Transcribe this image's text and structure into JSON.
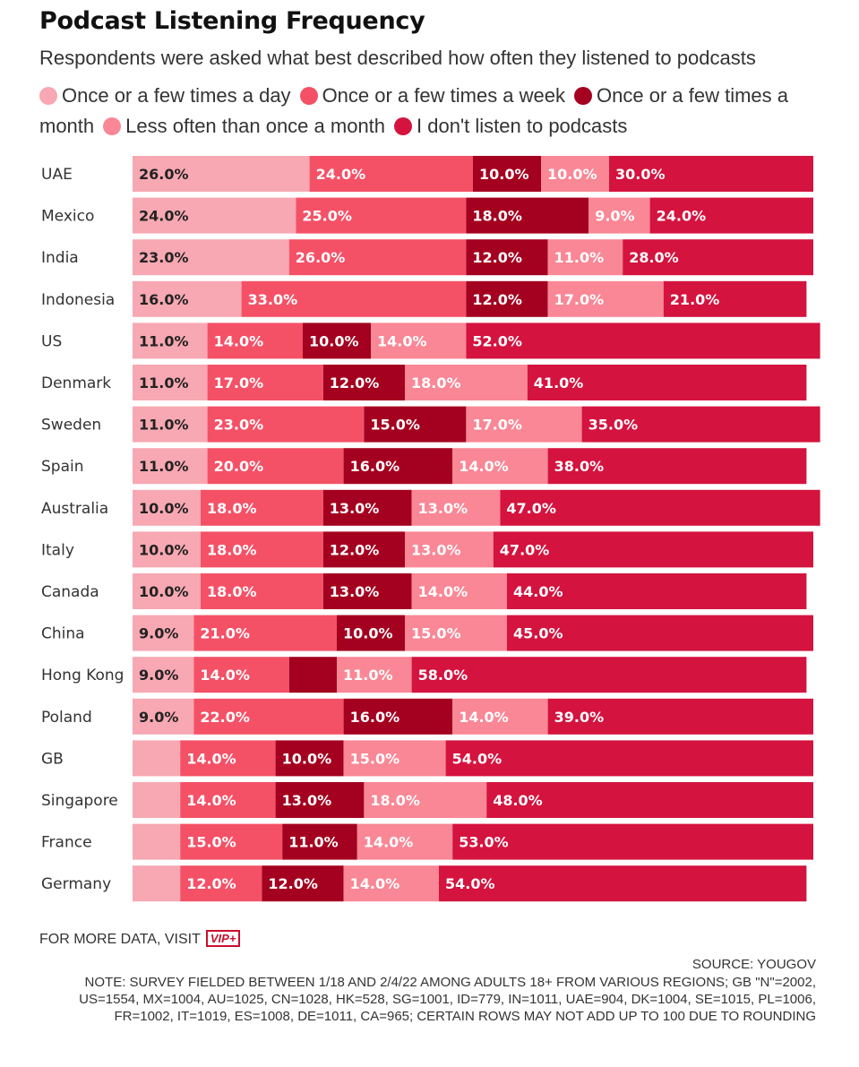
{
  "title": "Podcast Listening Frequency",
  "subtitle": "Respondents were asked what best described how often they listened to podcasts",
  "legend": [
    {
      "label": "Once or a few times a day",
      "color": "#f7a8b2"
    },
    {
      "label": "Once or a few times a week",
      "color": "#f45167"
    },
    {
      "label": "Once or a few times a month",
      "color": "#a4001f"
    },
    {
      "label": "Less often than once a month",
      "color": "#f98795"
    },
    {
      "label": "I don't listen to podcasts",
      "color": "#d4133f"
    }
  ],
  "chart_data": {
    "type": "bar",
    "orientation": "horizontal",
    "stacked": true,
    "categories": [
      "UAE",
      "Mexico",
      "India",
      "Indonesia",
      "US",
      "Denmark",
      "Sweden",
      "Spain",
      "Australia",
      "Italy",
      "Canada",
      "China",
      "Hong Kong",
      "Poland",
      "GB",
      "Singapore",
      "France",
      "Germany"
    ],
    "series": [
      {
        "name": "Once or a few times a day",
        "color": "#f7a8b2",
        "values": [
          26,
          24,
          23,
          16,
          11,
          11,
          11,
          11,
          10,
          10,
          10,
          9,
          9,
          9,
          7,
          7,
          7,
          7
        ],
        "labels": [
          "26.0%",
          "24.0%",
          "23.0%",
          "16.0%",
          "11.0%",
          "11.0%",
          "11.0%",
          "11.0%",
          "10.0%",
          "10.0%",
          "10.0%",
          "9.0%",
          "9.0%",
          "9.0%",
          "",
          "",
          "",
          ""
        ]
      },
      {
        "name": "Once or a few times a week",
        "color": "#f45167",
        "values": [
          24,
          25,
          26,
          33,
          14,
          17,
          23,
          20,
          18,
          18,
          18,
          21,
          14,
          22,
          14,
          14,
          15,
          12
        ],
        "labels": [
          "24.0%",
          "25.0%",
          "26.0%",
          "33.0%",
          "14.0%",
          "17.0%",
          "23.0%",
          "20.0%",
          "18.0%",
          "18.0%",
          "18.0%",
          "21.0%",
          "14.0%",
          "22.0%",
          "14.0%",
          "14.0%",
          "15.0%",
          "12.0%"
        ]
      },
      {
        "name": "Once or a few times a month",
        "color": "#a4001f",
        "values": [
          10,
          18,
          12,
          12,
          10,
          12,
          15,
          16,
          13,
          12,
          13,
          10,
          7,
          16,
          10,
          13,
          11,
          12
        ],
        "labels": [
          "10.0%",
          "18.0%",
          "12.0%",
          "12.0%",
          "10.0%",
          "12.0%",
          "15.0%",
          "16.0%",
          "13.0%",
          "12.0%",
          "13.0%",
          "10.0%",
          "",
          "16.0%",
          "10.0%",
          "13.0%",
          "11.0%",
          "12.0%"
        ]
      },
      {
        "name": "Less often than once a month",
        "color": "#f98795",
        "values": [
          10,
          9,
          11,
          17,
          14,
          18,
          17,
          14,
          13,
          13,
          14,
          15,
          11,
          14,
          15,
          18,
          14,
          14
        ],
        "labels": [
          "10.0%",
          "9.0%",
          "11.0%",
          "17.0%",
          "14.0%",
          "18.0%",
          "17.0%",
          "14.0%",
          "13.0%",
          "13.0%",
          "14.0%",
          "15.0%",
          "11.0%",
          "14.0%",
          "15.0%",
          "18.0%",
          "14.0%",
          "14.0%"
        ]
      },
      {
        "name": "I don't listen to podcasts",
        "color": "#d4133f",
        "values": [
          30,
          24,
          28,
          21,
          52,
          41,
          35,
          38,
          47,
          47,
          44,
          45,
          58,
          39,
          54,
          48,
          53,
          54
        ],
        "labels": [
          "30.0%",
          "24.0%",
          "28.0%",
          "21.0%",
          "52.0%",
          "41.0%",
          "35.0%",
          "38.0%",
          "47.0%",
          "47.0%",
          "44.0%",
          "45.0%",
          "58.0%",
          "39.0%",
          "54.0%",
          "48.0%",
          "53.0%",
          "54.0%"
        ]
      }
    ],
    "xlim": [
      0,
      100
    ],
    "grid": false,
    "legend_position": "top"
  },
  "footer": {
    "cta": "FOR MORE DATA, VISIT",
    "badge": "VIP+",
    "source": "SOURCE: YOUGOV",
    "note": "NOTE: SURVEY FIELDED BETWEEN 1/18 AND 2/4/22 AMONG ADULTS 18+ FROM VARIOUS REGIONS; GB \"N\"=2002, US=1554, MX=1004, AU=1025, CN=1028, HK=528, SG=1001, ID=779, IN=1011, UAE=904, DK=1004, SE=1015, PL=1006, FR=1002, IT=1019, ES=1008, DE=1011, CA=965; CERTAIN ROWS MAY NOT ADD UP TO 100 DUE TO ROUNDING"
  }
}
